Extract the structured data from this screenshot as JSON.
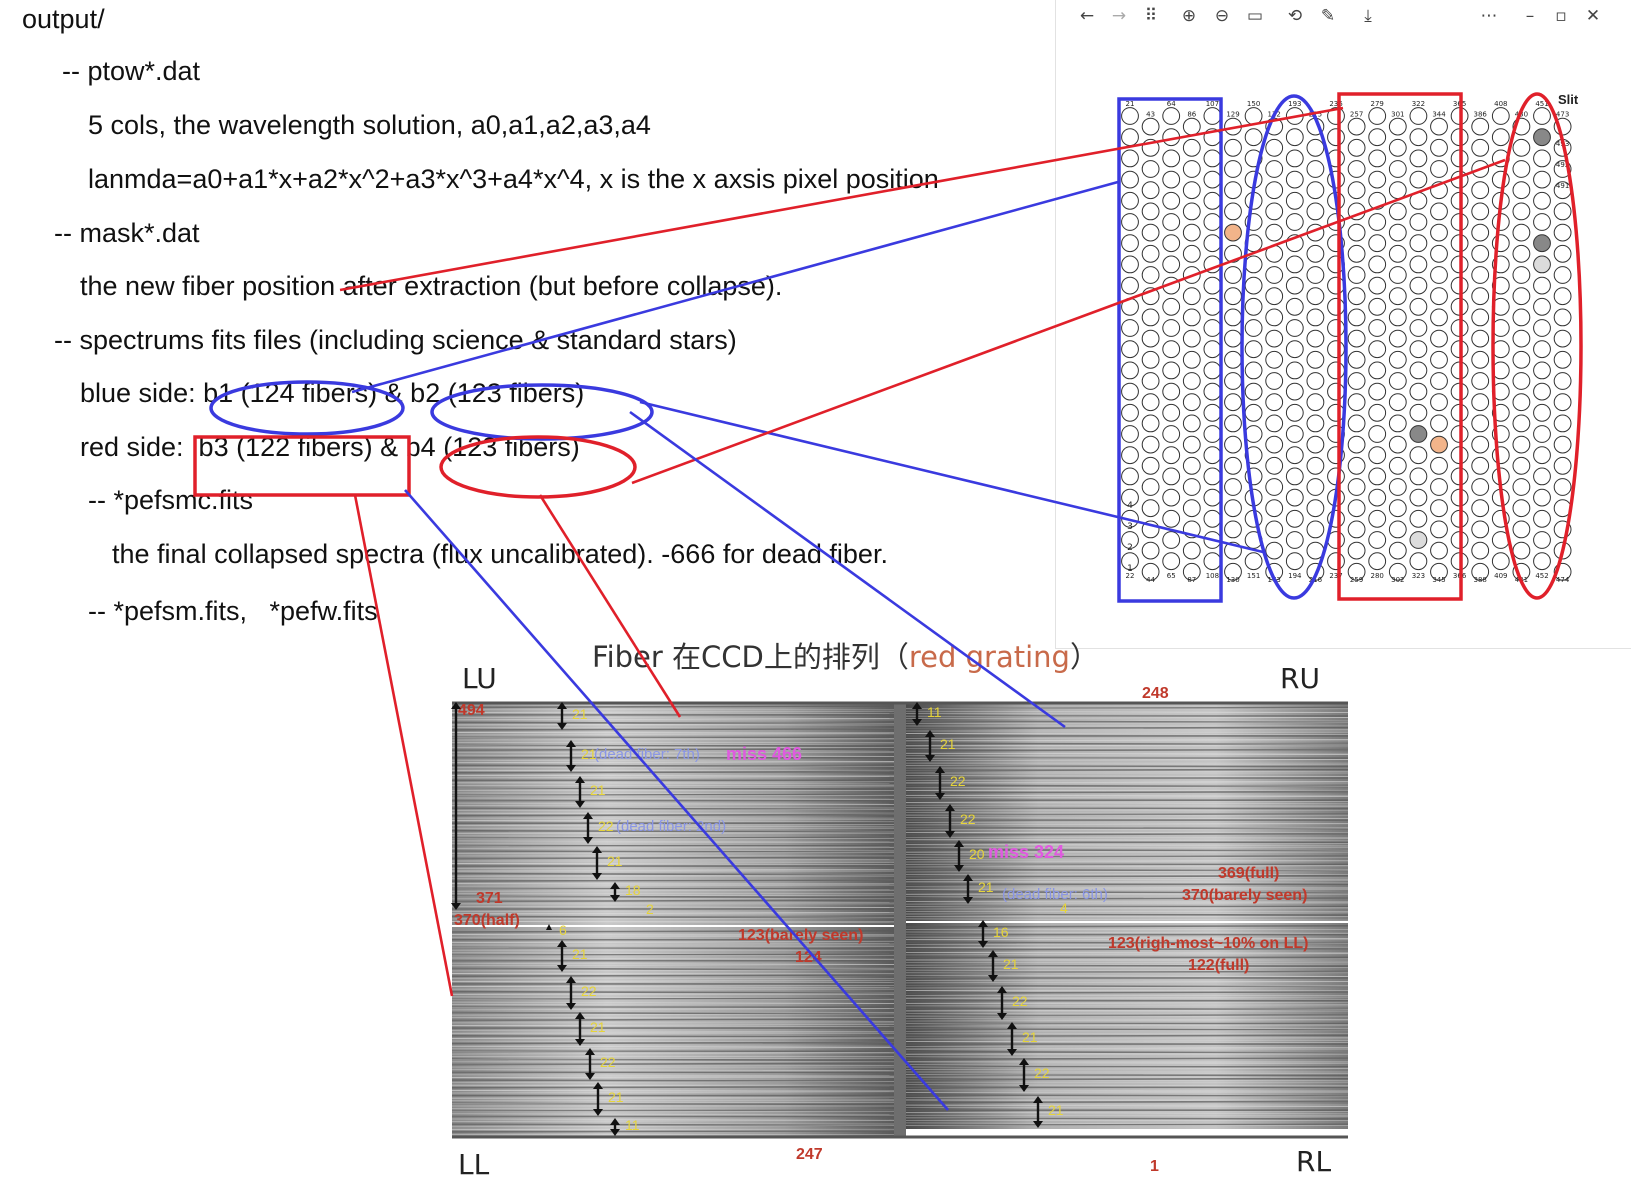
{
  "doc": {
    "lines": [
      "output/",
      "-- ptow*.dat",
      "5 cols, the wavelength solution, a0,a1,a2,a3,a4",
      "lanmda=a0+a1*x+a2*x^2+a3*x^3+a4*x^4, x is the x axsis pixel position",
      "-- mask*.dat",
      "the new fiber position after extraction (but before collapse).",
      "-- spectrums fits files (including science & standard stars)",
      "blue side: b1 (124 fibers) & b2 (123 fibers)",
      "red side:  b3 (122 fibers) & b4 (123 fibers)",
      "-- *pefsmc.fits",
      "the final collapsed spectra (flux uncalibrated). -666 for dead fiber.",
      "-- *pefsm.fits,   *pefw.fits"
    ]
  },
  "viewer": {
    "toolbar": [
      "back-icon",
      "forward-icon",
      "grid-icon",
      "zoom-in-icon",
      "zoom-out-icon",
      "fit-icon",
      "rotate-icon",
      "edit-icon",
      "download-icon",
      "more-icon",
      "minimize-icon",
      "maximize-icon",
      "close-icon"
    ],
    "slit_label": "Slit",
    "fiber_labels": {
      "top": [
        "21",
        "43",
        "64",
        "86",
        "107",
        "129",
        "150",
        "172",
        "193",
        "215",
        "236",
        "257",
        "279",
        "301",
        "322",
        "344",
        "365",
        "386",
        "408",
        "430",
        "451",
        "473"
      ],
      "right": [
        "493",
        "492",
        "491"
      ],
      "left": [
        "4",
        "3",
        "2",
        "1"
      ],
      "bottom": [
        "22",
        "44",
        "65",
        "87",
        "108",
        "130",
        "151",
        "173",
        "194",
        "216",
        "237",
        "259",
        "280",
        "302",
        "323",
        "345",
        "366",
        "388",
        "409",
        "431",
        "452",
        "474"
      ]
    }
  },
  "ccd": {
    "title_prefix": "Fiber 在CCD上的排列（",
    "title_red": "red grating",
    "title_suffix": "）",
    "corners": {
      "lu": "LU",
      "ru": "RU",
      "ll": "LL",
      "rl": "RL"
    },
    "labels": {
      "n494": "494",
      "n248": "248",
      "n371": "371",
      "n370half": "370(half)",
      "n123barely": "123(barely seen)",
      "n124": "124",
      "n369full": "369(full)",
      "n370barely": "370(barely seen)",
      "n123right": "123(righ-most~10% on LL)",
      "n122full": "122(full)",
      "n247": "247",
      "n1": "1",
      "miss466": "miss 466",
      "miss324": "miss 324",
      "dead7": "(dead fiber: 7th)",
      "dead2": "(dead fiber: 2nd)",
      "dead6": "(dead fiber: 6th)"
    },
    "lu_counts": [
      "21",
      "21",
      "21",
      "22",
      "21",
      "18",
      "2"
    ],
    "ll_counts": [
      "6",
      "21",
      "22",
      "21",
      "22",
      "21",
      "11"
    ],
    "ru_counts": [
      "11",
      "21",
      "22",
      "22",
      "20",
      "21",
      "4"
    ],
    "rl_counts": [
      "16",
      "21",
      "22",
      "21",
      "22",
      "21"
    ]
  },
  "colors": {
    "blue": "#3a3adf",
    "red": "#e0202a",
    "label_red": "#c0392b",
    "count_yellow": "#e6d43a",
    "miss_magenta": "#e05ae0"
  }
}
